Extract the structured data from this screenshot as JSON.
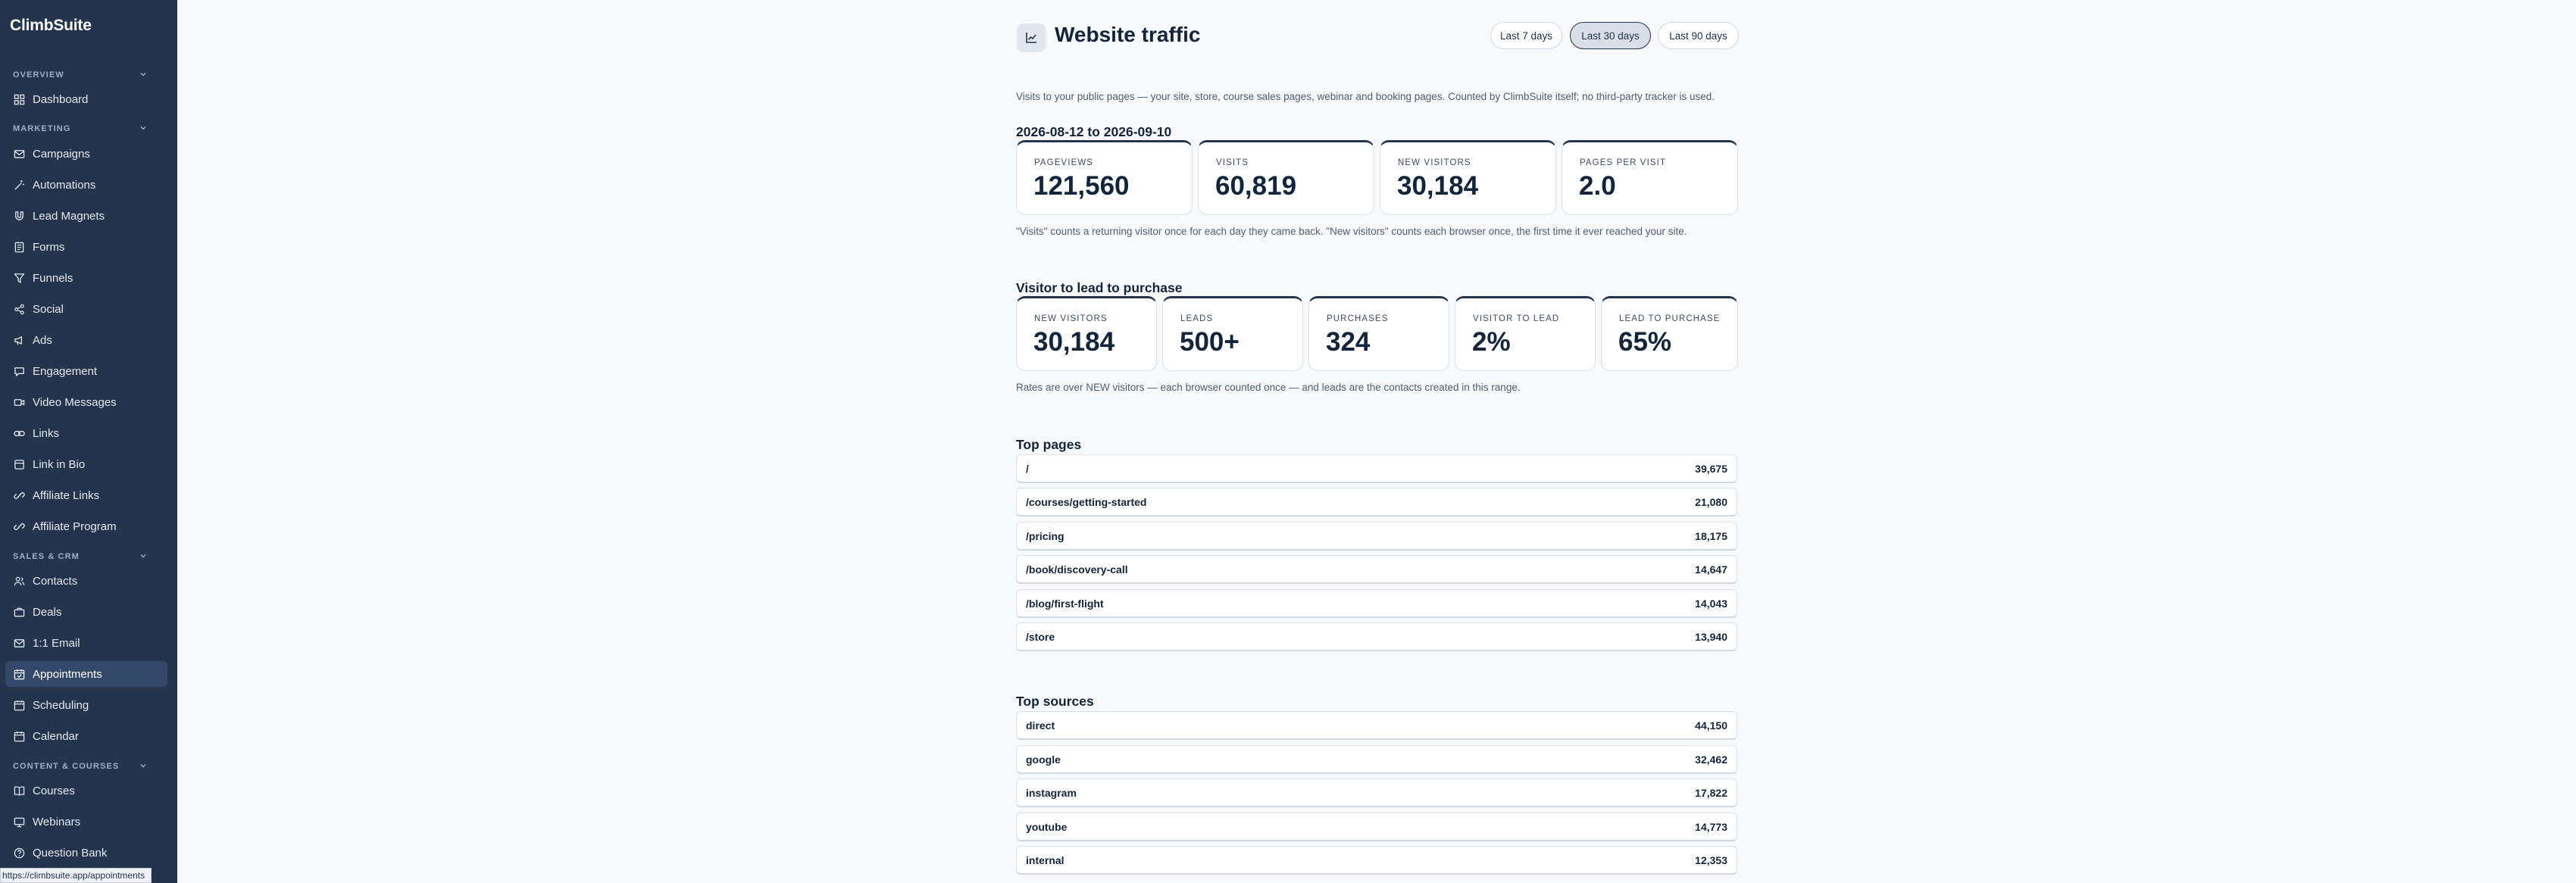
{
  "sidebar": {
    "brand": "ClimbSuite",
    "sections": {
      "overview": "OVERVIEW",
      "marketing": "MARKETING",
      "sales": "SALES & CRM",
      "content": "CONTENT & COURSES"
    },
    "items": {
      "dashboard": "Dashboard",
      "campaigns": "Campaigns",
      "automations": "Automations",
      "lead_magnets": "Lead Magnets",
      "forms": "Forms",
      "funnels": "Funnels",
      "social": "Social",
      "ads": "Ads",
      "engagement": "Engagement",
      "video_messages": "Video Messages",
      "links": "Links",
      "link_in_bio": "Link in Bio",
      "affiliate_links": "Affiliate Links",
      "affiliate_program": "Affiliate Program",
      "contacts": "Contacts",
      "deals": "Deals",
      "email": "1:1 Email",
      "appointments": "Appointments",
      "scheduling": "Scheduling",
      "calendar": "Calendar",
      "courses": "Courses",
      "webinars": "Webinars",
      "question_bank": "Question Bank"
    },
    "active_item": "Appointments"
  },
  "status_url": "https://climbsuite.app/appointments",
  "header": {
    "icon": "chart-icon",
    "title": "Website traffic",
    "ranges": [
      "Last 7 days",
      "Last 30 days",
      "Last 90 days"
    ],
    "active_range": "Last 30 days"
  },
  "intro": "Visits to your public pages — your site, store, course sales pages, webinar and booking pages. Counted by ClimbSuite itself; no third-party tracker is used.",
  "traffic": {
    "date_range": "2026-08-12 to 2026-09-10",
    "cards": [
      {
        "label": "PAGEVIEWS",
        "value": "121,560"
      },
      {
        "label": "VISITS",
        "value": "60,819"
      },
      {
        "label": "NEW VISITORS",
        "value": "30,184"
      },
      {
        "label": "PAGES PER VISIT",
        "value": "2.0"
      }
    ],
    "note": "\"Visits\" counts a returning visitor once for each day they came back. \"New visitors\" counts each browser once, the first time it ever reached your site."
  },
  "funnel": {
    "title": "Visitor to lead to purchase",
    "cards": [
      {
        "label": "NEW VISITORS",
        "value": "30,184"
      },
      {
        "label": "LEADS",
        "value": "500+"
      },
      {
        "label": "PURCHASES",
        "value": "324"
      },
      {
        "label": "VISITOR TO LEAD",
        "value": "2%"
      },
      {
        "label": "LEAD TO PURCHASE",
        "value": "65%"
      }
    ],
    "note": "Rates are over NEW visitors — each browser counted once — and leads are the contacts created in this range."
  },
  "top_pages": {
    "title": "Top pages",
    "rows": [
      {
        "path": "/",
        "count": "39,675"
      },
      {
        "path": "/courses/getting-started",
        "count": "21,080"
      },
      {
        "path": "/pricing",
        "count": "18,175"
      },
      {
        "path": "/book/discovery-call",
        "count": "14,647"
      },
      {
        "path": "/blog/first-flight",
        "count": "14,043"
      },
      {
        "path": "/store",
        "count": "13,940"
      }
    ]
  },
  "top_sources": {
    "title": "Top sources",
    "rows": [
      {
        "source": "direct",
        "count": "44,150"
      },
      {
        "source": "google",
        "count": "32,462"
      },
      {
        "source": "instagram",
        "count": "17,822"
      },
      {
        "source": "youtube",
        "count": "14,773"
      },
      {
        "source": "internal",
        "count": "12,353"
      }
    ]
  }
}
